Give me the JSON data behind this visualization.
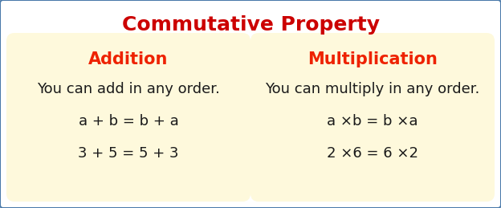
{
  "title": "Commutative Property",
  "title_color": "#cc0000",
  "title_fontsize": 18,
  "bg_color": "#ffffff",
  "border_color": "#4a7aaa",
  "box_bg_color": "#fef9dc",
  "left_box": {
    "header": "Addition",
    "header_color": "#ee2200",
    "header_fontsize": 15,
    "lines": [
      "You can add in any order.",
      "a + b = b + a",
      "3 + 5 = 5 + 3"
    ],
    "line_fontsizes": [
      13,
      13,
      13
    ],
    "line_color": "#1a1a1a"
  },
  "right_box": {
    "header": "Multiplication",
    "header_color": "#ee2200",
    "header_fontsize": 15,
    "lines": [
      "You can multiply in any order.",
      "a ×b = b ×a",
      "2 ×6 = 6 ×2"
    ],
    "line_fontsizes": [
      13,
      13,
      13
    ],
    "line_color": "#1a1a1a"
  },
  "fig_width": 6.24,
  "fig_height": 2.59,
  "dpi": 100
}
